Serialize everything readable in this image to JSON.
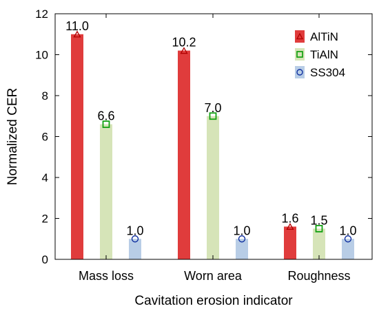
{
  "chart_data": {
    "type": "bar",
    "categories": [
      "Mass loss",
      "Worn area",
      "Roughness"
    ],
    "series": [
      {
        "name": "AlTiN",
        "values": [
          11.0,
          10.2,
          1.6
        ],
        "labels": [
          "11.0",
          "10.2",
          "1.6"
        ],
        "color": "#e03c3c",
        "marker": "triangle",
        "marker_color": "#b00000"
      },
      {
        "name": "TiAlN",
        "values": [
          6.6,
          7.0,
          1.5
        ],
        "labels": [
          "6.6",
          "7.0",
          "1.5"
        ],
        "color": "#d6e4b8",
        "marker": "square",
        "marker_color": "#10a010"
      },
      {
        "name": "SS304",
        "values": [
          1.0,
          1.0,
          1.0
        ],
        "labels": [
          "1.0",
          "1.0",
          "1.0"
        ],
        "color": "#b8cde6",
        "marker": "circle",
        "marker_color": "#1030a0"
      }
    ],
    "xlabel": "Cavitation erosion indicator",
    "ylabel": "Normalized CER",
    "ylim": [
      0,
      12
    ],
    "yticks": [
      "0",
      "2",
      "4",
      "6",
      "8",
      "10",
      "12"
    ],
    "grid": false,
    "legend": "top-right"
  }
}
